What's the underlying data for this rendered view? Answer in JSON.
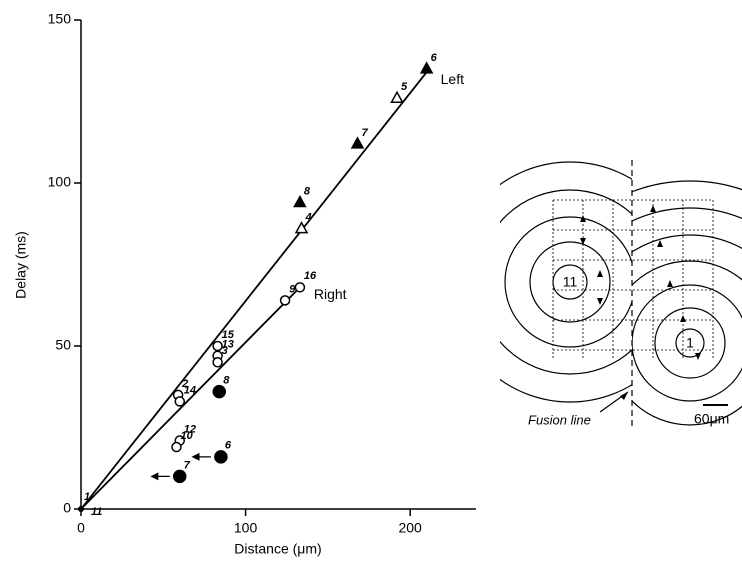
{
  "chart_data": {
    "type": "scatter",
    "xlabel": "Distance (μm)",
    "ylabel": "Delay (ms)",
    "xlim": [
      0,
      240
    ],
    "ylim": [
      0,
      150
    ],
    "xticks": [
      0,
      100,
      200
    ],
    "yticks": [
      0,
      50,
      100,
      150
    ],
    "origin_labels": [
      "1",
      "11"
    ],
    "series": [
      {
        "name": "Left",
        "marker": "triangle",
        "color": "#000",
        "x": [
          210,
          168,
          133,
          192,
          134
        ],
        "values": [
          135,
          112,
          94,
          126,
          86
        ],
        "filled": [
          true,
          true,
          true,
          false,
          false
        ],
        "point_labels": [
          "6",
          "7",
          "8",
          "5",
          "4"
        ],
        "fit_x": [
          0,
          210
        ],
        "fit_y": [
          0,
          134
        ]
      },
      {
        "name": "Right",
        "marker": "circle",
        "color": "#000",
        "x": [
          133,
          124,
          83,
          83,
          83,
          59,
          60,
          60,
          58
        ],
        "values": [
          68,
          64,
          50,
          47,
          45,
          35,
          33,
          21,
          19
        ],
        "filled": [
          false,
          false,
          false,
          false,
          false,
          false,
          false,
          false,
          false
        ],
        "point_labels": [
          "16",
          "9",
          "15",
          "13",
          "3",
          "2",
          "14",
          "12",
          "10"
        ],
        "fit_x": [
          0,
          133
        ],
        "fit_y": [
          0,
          68
        ]
      },
      {
        "marker": "circle",
        "color": "#000",
        "x": [
          84,
          85,
          60
        ],
        "values": [
          36,
          16,
          10
        ],
        "filled": [
          true,
          true,
          true
        ],
        "point_labels": [
          "8",
          "6",
          "7"
        ]
      }
    ]
  },
  "diagram": {
    "center_labels": [
      "11",
      "1"
    ],
    "fusion_label": "Fusion line",
    "scale_label": "60μm"
  }
}
